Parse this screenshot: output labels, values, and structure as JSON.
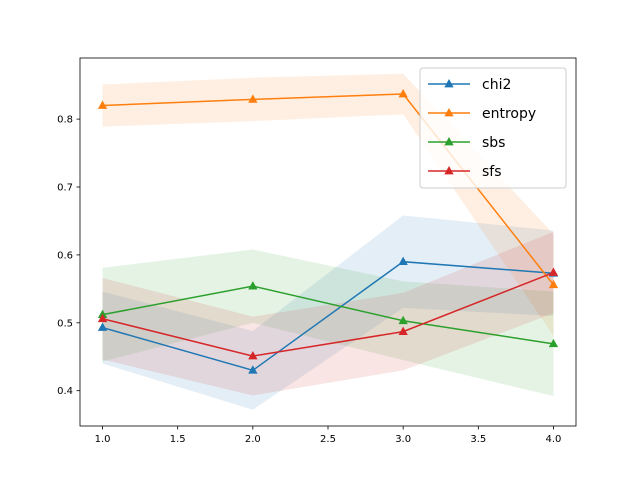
{
  "chart_data": {
    "type": "line",
    "x": [
      1.0,
      2.0,
      3.0,
      4.0
    ],
    "xlim": [
      0.85,
      4.15
    ],
    "ylim": [
      0.348,
      0.89
    ],
    "xticks": [
      1.0,
      1.5,
      2.0,
      2.5,
      3.0,
      3.5,
      4.0
    ],
    "xtick_labels": [
      "1.0",
      "1.5",
      "2.0",
      "2.5",
      "3.0",
      "3.5",
      "4.0"
    ],
    "yticks": [
      0.4,
      0.5,
      0.6,
      0.7,
      0.8
    ],
    "ytick_labels": [
      "0.4",
      "0.5",
      "0.6",
      "0.7",
      "0.8"
    ],
    "grid": false,
    "legend_position": "top-right",
    "marker": "triangle",
    "series": [
      {
        "name": "chi2",
        "color": "#1f77b4",
        "values": [
          0.493,
          0.43,
          0.59,
          0.573
        ],
        "lower": [
          0.44,
          0.372,
          0.522,
          0.51
        ],
        "upper": [
          0.546,
          0.488,
          0.658,
          0.636
        ]
      },
      {
        "name": "entropy",
        "color": "#ff7f0e",
        "values": [
          0.82,
          0.829,
          0.837,
          0.556
        ],
        "lower": [
          0.789,
          0.797,
          0.807,
          0.481
        ],
        "upper": [
          0.851,
          0.861,
          0.867,
          0.631
        ]
      },
      {
        "name": "sbs",
        "color": "#2ca02c",
        "values": [
          0.512,
          0.554,
          0.503,
          0.469
        ],
        "lower": [
          0.443,
          0.5,
          0.445,
          0.392
        ],
        "upper": [
          0.581,
          0.608,
          0.561,
          0.546
        ]
      },
      {
        "name": "sfs",
        "color": "#d62728",
        "values": [
          0.506,
          0.451,
          0.487,
          0.574
        ],
        "lower": [
          0.446,
          0.393,
          0.43,
          0.514
        ],
        "upper": [
          0.566,
          0.509,
          0.544,
          0.634
        ]
      }
    ]
  }
}
